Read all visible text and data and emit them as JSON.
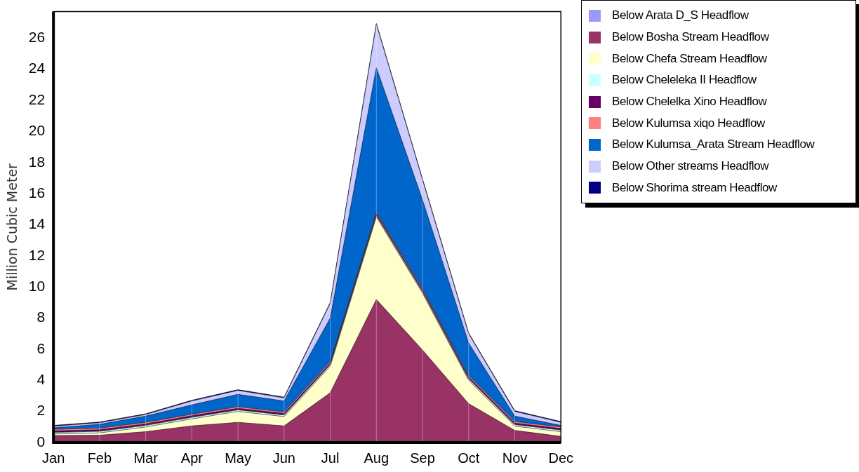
{
  "chart_data": {
    "type": "area",
    "stacked": true,
    "ylabel": "Million Cubic Meter",
    "categories": [
      "Jan",
      "Feb",
      "Mar",
      "Apr",
      "May",
      "Jun",
      "Jul",
      "Aug",
      "Sep",
      "Oct",
      "Nov",
      "Dec"
    ],
    "ylim": [
      0,
      27.7
    ],
    "yticks": [
      0,
      2,
      4,
      6,
      8,
      10,
      12,
      14,
      16,
      18,
      20,
      22,
      24,
      26
    ],
    "grid": "x",
    "legend": "top right",
    "marker": "none",
    "line_style": "solid",
    "series": [
      {
        "name": "Below Arata D_S Headflow",
        "color": "#9999ff",
        "values": [
          0.1,
          0.1,
          0.1,
          0.1,
          0.1,
          0.1,
          0.1,
          0.1,
          0.1,
          0.1,
          0.1,
          0.1
        ]
      },
      {
        "name": "Below Bosha Stream Headflow",
        "color": "#993366",
        "values": [
          0.35,
          0.37,
          0.6,
          0.97,
          1.2,
          0.97,
          3.1,
          9.1,
          5.85,
          2.4,
          0.68,
          0.3
        ]
      },
      {
        "name": "Below Chefa Stream Headflow",
        "color": "#ffffcc",
        "values": [
          0.1,
          0.15,
          0.3,
          0.45,
          0.7,
          0.6,
          1.7,
          5.3,
          3.65,
          1.5,
          0.27,
          0.3
        ]
      },
      {
        "name": "Below Cheleleka II Headflow",
        "color": "#ccffff",
        "values": [
          0.1,
          0.1,
          0.1,
          0.1,
          0.1,
          0.1,
          0.1,
          0.1,
          0.1,
          0.1,
          0.1,
          0.1
        ]
      },
      {
        "name": "Below Chelelka Xino Headflow",
        "color": "#660066",
        "values": [
          0.1,
          0.1,
          0.1,
          0.1,
          0.1,
          0.1,
          0.1,
          0.1,
          0.1,
          0.1,
          0.1,
          0.1
        ]
      },
      {
        "name": "Below Kulumsa xiqo Headflow",
        "color": "#ff8080",
        "values": [
          0.1,
          0.1,
          0.1,
          0.1,
          0.1,
          0.1,
          0.1,
          0.1,
          0.1,
          0.1,
          0.1,
          0.1
        ]
      },
      {
        "name": "Below Kulumsa_Arata Stream Headflow",
        "color": "#0066cc",
        "values": [
          0.1,
          0.25,
          0.4,
          0.6,
          0.8,
          0.7,
          2.8,
          9.3,
          5.7,
          2.1,
          0.35,
          0.1
        ]
      },
      {
        "name": "Below Other streams Headflow",
        "color": "#ccccff",
        "values": [
          0.1,
          0.1,
          0.1,
          0.25,
          0.25,
          0.2,
          0.95,
          2.8,
          1.3,
          0.6,
          0.3,
          0.2
        ]
      },
      {
        "name": "Below Shorima stream Headflow",
        "color": "#000080",
        "values": [
          0.05,
          0.05,
          0.05,
          0.05,
          0.05,
          0.05,
          0.05,
          0.05,
          0.05,
          0.05,
          0.05,
          0.05
        ]
      }
    ]
  }
}
